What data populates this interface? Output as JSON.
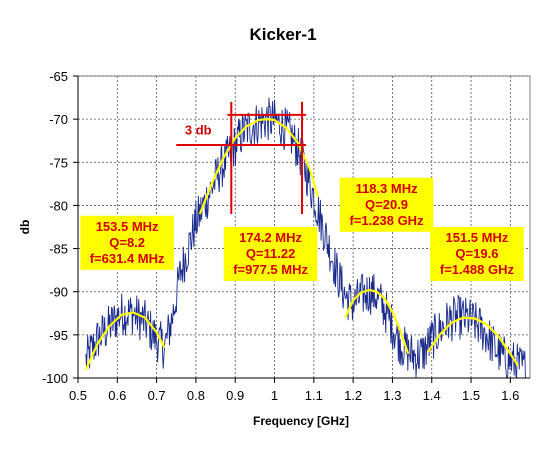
{
  "chart_data": {
    "type": "line",
    "title": "Kicker-1",
    "xlabel": "Frequency [GHz]",
    "ylabel": "db",
    "xlim": [
      0.5,
      1.65
    ],
    "ylim": [
      -100,
      -65
    ],
    "xticks": [
      "0.5",
      "0.6",
      "0.7",
      "0.8",
      "0.9",
      "1",
      "1.1",
      "1.2",
      "1.3",
      "1.4",
      "1.5",
      "1.6"
    ],
    "xtick_values": [
      0.5,
      0.6,
      0.7,
      0.8,
      0.9,
      1.0,
      1.1,
      1.2,
      1.3,
      1.4,
      1.5,
      1.6
    ],
    "yticks": [
      "-65",
      "-70",
      "-75",
      "-80",
      "-85",
      "-90",
      "-95",
      "-100"
    ],
    "ytick_values": [
      -65,
      -70,
      -75,
      -80,
      -85,
      -90,
      -95,
      -100
    ],
    "grid": true,
    "legend": "none",
    "colors": {
      "measured": "#1a2a8c",
      "fit": "#ffff00",
      "annotation": "#e00000",
      "box_fill": "#ffff00"
    },
    "series": [
      {
        "role": "measured",
        "x": [
          0.52,
          0.55,
          0.58,
          0.61,
          0.64,
          0.67,
          0.7,
          0.72,
          0.74,
          0.76,
          0.78,
          0.8,
          0.82,
          0.84,
          0.86,
          0.88,
          0.9,
          0.92,
          0.94,
          0.96,
          0.98,
          1.0,
          1.02,
          1.04,
          1.06,
          1.08,
          1.1,
          1.12,
          1.14,
          1.16,
          1.18,
          1.2,
          1.22,
          1.24,
          1.26,
          1.28,
          1.3,
          1.32,
          1.34,
          1.36,
          1.38,
          1.4,
          1.42,
          1.44,
          1.46,
          1.48,
          1.5,
          1.52,
          1.54,
          1.56,
          1.58,
          1.6,
          1.62,
          1.64
        ],
        "y": [
          -98,
          -95.5,
          -94,
          -92.5,
          -92.5,
          -93.5,
          -95.5,
          -96.5,
          -93,
          -88,
          -85,
          -82,
          -80,
          -78,
          -76,
          -74.5,
          -73,
          -71.5,
          -70.8,
          -70.4,
          -70,
          -70.2,
          -70.8,
          -71.8,
          -73.5,
          -76,
          -79,
          -82,
          -85,
          -88,
          -90.5,
          -91.5,
          -90.5,
          -90,
          -90.5,
          -92,
          -94,
          -96,
          -97,
          -97.5,
          -97,
          -95.5,
          -94.5,
          -93.5,
          -93,
          -93,
          -93.3,
          -94,
          -95,
          -96.5,
          -97.5,
          -98,
          -98.5,
          -99
        ]
      },
      {
        "role": "fit",
        "segments": [
          {
            "x": [
              0.52,
              0.55,
              0.58,
              0.61,
              0.64,
              0.67,
              0.7,
              0.72
            ],
            "y": [
              -99,
              -96,
              -94,
              -92.7,
              -92.4,
              -93,
              -94.7,
              -96.5
            ]
          },
          {
            "x": [
              0.81,
              0.84,
              0.87,
              0.9,
              0.93,
              0.96,
              0.98,
              1.0,
              1.03,
              1.06,
              1.09,
              1.11
            ],
            "y": [
              -81,
              -77.5,
              -74.5,
              -72.2,
              -70.8,
              -70.1,
              -70,
              -70.1,
              -71,
              -72.8,
              -75.8,
              -79
            ]
          },
          {
            "x": [
              1.18,
              1.2,
              1.22,
              1.24,
              1.26,
              1.28,
              1.3,
              1.32,
              1.34
            ],
            "y": [
              -93,
              -91,
              -90.1,
              -89.8,
              -90,
              -90.8,
              -92.3,
              -94.5,
              -97.2
            ]
          },
          {
            "x": [
              1.39,
              1.42,
              1.45,
              1.48,
              1.51,
              1.54,
              1.57,
              1.6,
              1.62
            ],
            "y": [
              -97,
              -95,
              -93.6,
              -93,
              -93.1,
              -93.8,
              -95.2,
              -97.2,
              -98.6
            ]
          }
        ]
      }
    ],
    "annotations": {
      "three_db": {
        "label": "3 db",
        "upper_line": {
          "x0": 0.88,
          "x1": 1.08,
          "y": -69.5
        },
        "lower_line": {
          "x0": 0.75,
          "x1": 1.08,
          "y": -73
        },
        "vertical_left": {
          "x": 0.89,
          "y0": -68,
          "y1": -81
        },
        "vertical_right": {
          "x": 1.07,
          "y0": -68,
          "y1": -81
        },
        "label_x": 0.84,
        "label_y": -71.2
      },
      "boxes": [
        {
          "lines": [
            "153.5 MHz",
            "Q=8.2",
            "f=631.4 MHz"
          ],
          "center_x": 0.625,
          "top_y": -81.2
        },
        {
          "lines": [
            "174.2 MHz",
            "Q=11.22",
            "f=977.5 MHz"
          ],
          "center_x": 0.99,
          "top_y": -82.5
        },
        {
          "lines": [
            "118.3 MHz",
            "Q=20.9",
            "f=1.238 GHz"
          ],
          "center_x": 1.285,
          "top_y": -76.8
        },
        {
          "lines": [
            "151.5 MHz",
            "Q=19.6",
            "f=1.488 GHz"
          ],
          "center_x": 1.515,
          "top_y": -82.5
        }
      ]
    }
  }
}
